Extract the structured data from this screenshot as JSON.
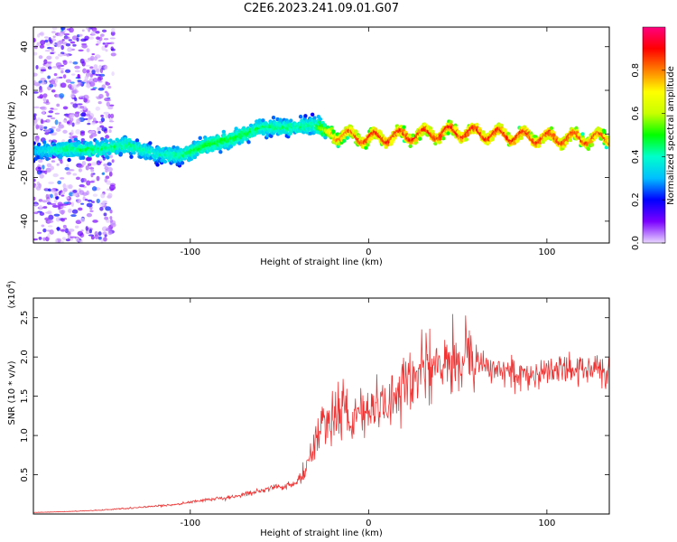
{
  "title": "C2E6.2023.241.09.01.G07",
  "chart_data": [
    {
      "type": "heatmap",
      "xlabel": "Height of straight line (km)",
      "ylabel": "Frequency (Hz)",
      "xlim": [
        -188,
        135
      ],
      "ylim": [
        -50,
        49
      ],
      "xticks": [
        -100,
        0,
        100
      ],
      "yticks": [
        -40,
        -20,
        0,
        20,
        40
      ],
      "colorbar": {
        "label": "Normalized spectral amplitude",
        "range": [
          0.0,
          1.0
        ],
        "ticks": [
          "0.0",
          "0.2",
          "0.4",
          "0.6",
          "0.8"
        ],
        "colors": [
          "#e8d6ff",
          "#7a00ff",
          "#0000ff",
          "#00bfff",
          "#00ffcc",
          "#00ff00",
          "#c8ff00",
          "#ffff00",
          "#ff8000",
          "#ff0000",
          "#ff0080"
        ]
      },
      "ridge": [
        {
          "x": -185,
          "y": -8,
          "amp": 0.35
        },
        {
          "x": -170,
          "y": -7,
          "amp": 0.45
        },
        {
          "x": -150,
          "y": -7,
          "amp": 0.45
        },
        {
          "x": -135,
          "y": -5,
          "amp": 0.45
        },
        {
          "x": -120,
          "y": -9,
          "amp": 0.4
        },
        {
          "x": -105,
          "y": -10,
          "amp": 0.45
        },
        {
          "x": -90,
          "y": -5,
          "amp": 0.5
        },
        {
          "x": -75,
          "y": -2,
          "amp": 0.5
        },
        {
          "x": -60,
          "y": 3,
          "amp": 0.45
        },
        {
          "x": -45,
          "y": 3,
          "amp": 0.45
        },
        {
          "x": -30,
          "y": 4,
          "amp": 0.45
        },
        {
          "x": -20,
          "y": 0,
          "amp": 0.8
        },
        {
          "x": 0,
          "y": -2,
          "amp": 0.9
        },
        {
          "x": 50,
          "y": 1,
          "amp": 0.9
        },
        {
          "x": 100,
          "y": -2,
          "amp": 0.9
        },
        {
          "x": 135,
          "y": -2,
          "amp": 0.85
        }
      ]
    },
    {
      "type": "line",
      "xlabel": "Height of straight line (km)",
      "ylabel": "SNR (10 * v/v)",
      "multiplier": "(x10",
      "multiplier_exp": "4",
      "multiplier_close": ")",
      "xlim": [
        -188,
        135
      ],
      "ylim": [
        0.0,
        2.75
      ],
      "xticks": [
        -100,
        0,
        100
      ],
      "yticks": [
        0.5,
        1.0,
        1.5,
        2.0,
        2.5
      ],
      "series": [
        {
          "color": "#ee3333",
          "x": [
            -188,
            -170,
            -150,
            -130,
            -110,
            -100,
            -90,
            -80,
            -70,
            -60,
            -50,
            -40,
            -35,
            -30,
            -25,
            -20,
            -15,
            -10,
            -5,
            0,
            5,
            10,
            15,
            20,
            25,
            30,
            40,
            50,
            60,
            70,
            80,
            90,
            100,
            110,
            120,
            135
          ],
          "y": [
            0.02,
            0.03,
            0.05,
            0.08,
            0.12,
            0.15,
            0.18,
            0.2,
            0.25,
            0.3,
            0.35,
            0.4,
            0.6,
            0.9,
            1.15,
            1.3,
            1.3,
            1.2,
            1.25,
            1.3,
            1.35,
            1.4,
            1.5,
            1.7,
            1.8,
            1.85,
            1.9,
            2.0,
            1.95,
            1.85,
            1.8,
            1.8,
            1.8,
            1.85,
            1.85,
            1.85
          ]
        }
      ]
    }
  ]
}
